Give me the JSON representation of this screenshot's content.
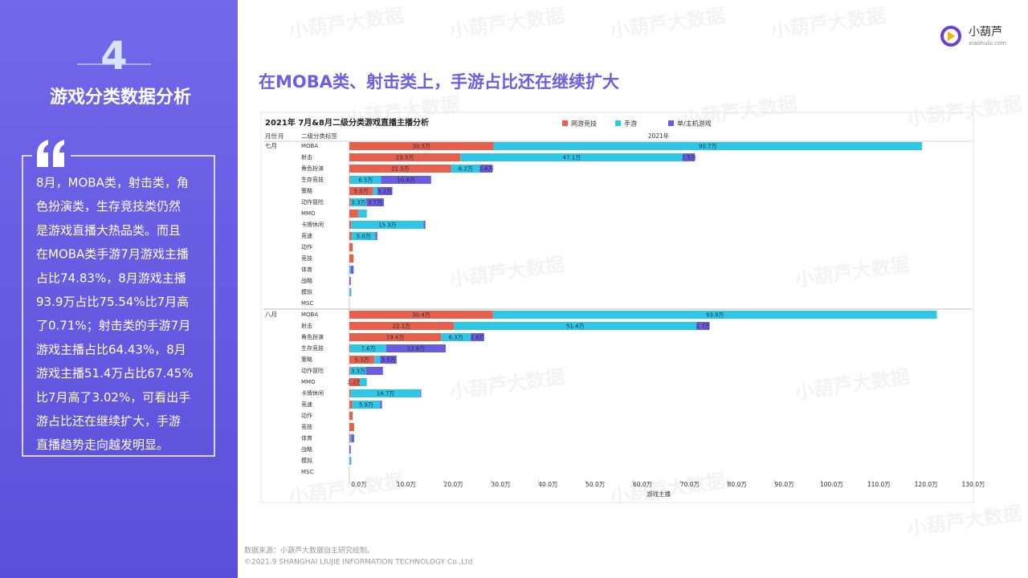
{
  "left_panel": {
    "number": "4",
    "title": "游戏分类数据分析",
    "quote_lines": [
      "8月，MOBA类，射击类，角",
      "色扮演类，生存竞技类仍然",
      "是游戏直播大热品类。而且",
      "在MOBA类手游7月游戏主播",
      "占比74.83%，8月游戏主播",
      "93.9万占比75.54%比7月高",
      "了0.71%；射击类的手游7月",
      "游戏主播占比64.43%，8月",
      "游戏主播51.4万占比67.45%",
      "比7月高了3.02%，可看出手",
      "游占比还在继续扩大，手游",
      "直播趋势走向越发明显。"
    ]
  },
  "header": {
    "brand": "小葫芦",
    "domain": "xiaohulu.com"
  },
  "heading": "在MOBA类、射击类上，手游占比还在继续扩大",
  "watermark": "小葫芦大数据",
  "chart_data": {
    "type": "stacked-bar-horizontal",
    "title": "2021年 7月&8月二级分类游戏直播主播分析",
    "header_labels": [
      "月份",
      "月",
      "二级分类标签",
      "2021年"
    ],
    "groups": [
      "七月",
      "八月"
    ],
    "categories": [
      "MOBA",
      "射击",
      "角色扮演",
      "生存竞技",
      "策略",
      "动作冒险",
      "MMO",
      "卡牌休闲",
      "竞速",
      "动作",
      "竞技",
      "体育",
      "战略",
      "模拟",
      "MSC"
    ],
    "series": [
      {
        "name": "网游竞技",
        "color": "#e8604c",
        "values": [
          [
            30.5,
            23.5,
            21.5,
            0.2,
            5.0,
            0.3,
            1.9,
            0.4,
            0.5,
            0.7,
            0.9,
            null,
            null,
            null,
            null
          ],
          [
            30.4,
            22.1,
            19.4,
            0.2,
            5.3,
            0.2,
            2.2,
            0.3,
            0.6,
            0.7,
            1.0,
            0.2,
            null,
            null,
            null
          ]
        ],
        "value_labels": [
          [
            "30.5万",
            "23.5万",
            "21.5万",
            null,
            "5.0万",
            null,
            null,
            null,
            null,
            null,
            null,
            null,
            null,
            null,
            null
          ],
          [
            "30.4万",
            "22.1万",
            "19.4万",
            null,
            "5.3万",
            null,
            "2.2万",
            null,
            null,
            null,
            null,
            null,
            null,
            null,
            null
          ]
        ]
      },
      {
        "name": "手游",
        "color": "#2ec7e6",
        "values": [
          [
            90.7,
            47.1,
            6.2,
            6.5,
            0.9,
            3.3,
            1.8,
            15.3,
            5.0,
            null,
            null,
            0.3,
            null,
            0.3,
            null
          ],
          [
            93.9,
            51.4,
            6.3,
            7.6,
            1.2,
            3.3,
            1.5,
            14.7,
            5.9,
            null,
            null,
            0.2,
            null,
            0.3,
            null
          ]
        ],
        "value_labels": [
          [
            "90.7万",
            "47.1万",
            "6.2万",
            "6.5万",
            null,
            "3.3万",
            null,
            "15.3万",
            "5.0万",
            null,
            null,
            null,
            null,
            null,
            null
          ],
          [
            "93.9万",
            "51.4万",
            "6.3万",
            "7.6万",
            null,
            "3.3万",
            null,
            "14.7万",
            "5.9万",
            null,
            null,
            null,
            null,
            null,
            null
          ]
        ]
      },
      {
        "name": "单/主机游戏",
        "color": "#6a5be0",
        "values": [
          [
            null,
            2.5,
            2.6,
            10.6,
            3.2,
            3.7,
            null,
            0.4,
            0.4,
            null,
            null,
            0.6,
            0.3,
            0.1,
            null
          ],
          [
            null,
            2.7,
            2.8,
            12.6,
            3.5,
            3.6,
            null,
            0.2,
            0.4,
            null,
            null,
            0.6,
            0.3,
            0.1,
            null
          ]
        ],
        "value_labels": [
          [
            null,
            "2.5万",
            "2.6万",
            "10.6万",
            "3.2万",
            "3.7万",
            null,
            null,
            null,
            null,
            null,
            null,
            null,
            null,
            null
          ],
          [
            null,
            "2.7万",
            "2.8万",
            "12.6万",
            "3.5万",
            null,
            null,
            null,
            null,
            null,
            null,
            null,
            null,
            null,
            null
          ]
        ]
      }
    ],
    "xlim": [
      0,
      130
    ],
    "xticks": [
      {
        "value": 0,
        "label": "0.0万"
      },
      {
        "value": 10,
        "label": "10.0万"
      },
      {
        "value": 20,
        "label": "20.0万"
      },
      {
        "value": 30,
        "label": "30.0万"
      },
      {
        "value": 40,
        "label": "40.0万"
      },
      {
        "value": 50,
        "label": "50.0万"
      },
      {
        "value": 60,
        "label": "60.0万"
      },
      {
        "value": 70,
        "label": "70.0万"
      },
      {
        "value": 80,
        "label": "80.0万"
      },
      {
        "value": 90,
        "label": "90.0万"
      },
      {
        "value": 100,
        "label": "100.0万"
      },
      {
        "value": 110,
        "label": "110.0万"
      },
      {
        "value": 120,
        "label": "120.0万"
      },
      {
        "value": 130,
        "label": "130.0万"
      }
    ],
    "xlabel": "游戏主播"
  },
  "footer": {
    "source": "数据来源：小葫芦大数据自主研究绘制。",
    "copyright": "©2021.9 SHANGHAI LIUJIE INFORMATION  TECHNOLOGY Co.,Ltd"
  }
}
